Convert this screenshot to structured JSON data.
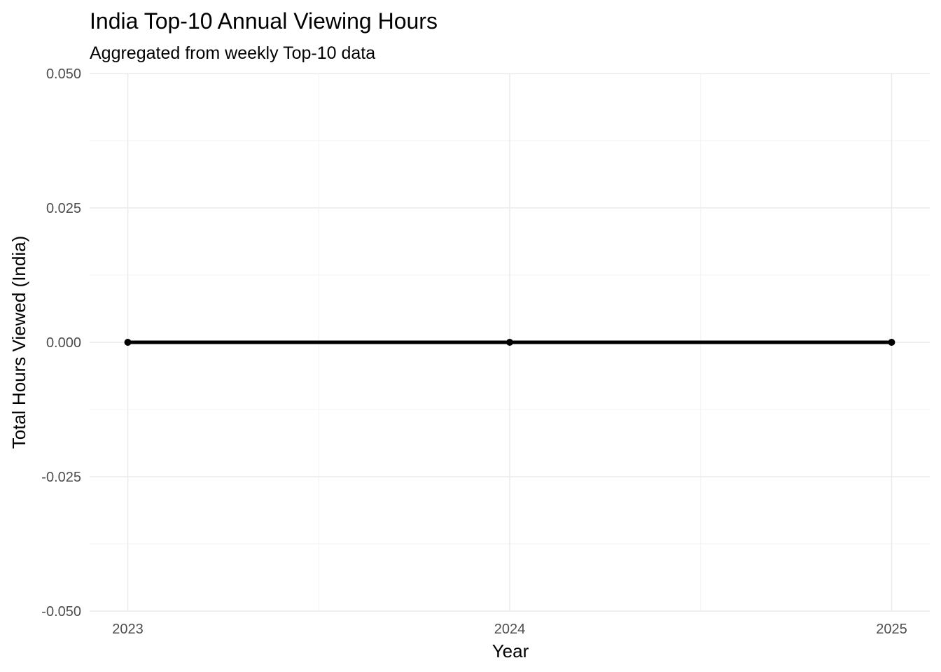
{
  "chart_data": {
    "type": "line",
    "title": "India Top-10 Annual Viewing Hours",
    "subtitle": "Aggregated from weekly Top-10 data",
    "xlabel": "Year",
    "ylabel": "Total Hours Viewed (India)",
    "x": [
      2023,
      2024,
      2025
    ],
    "series": [
      {
        "values": [
          0,
          0,
          0
        ],
        "color": "#000000"
      }
    ],
    "xlim": [
      2022.9,
      2025.1
    ],
    "ylim": [
      -0.05,
      0.05
    ],
    "x_ticks": [
      "2023",
      "2024",
      "2025"
    ],
    "y_ticks": [
      "-0.050",
      "-0.025",
      "0.000",
      "0.025",
      "0.050"
    ],
    "grid": true,
    "legend": "none"
  }
}
